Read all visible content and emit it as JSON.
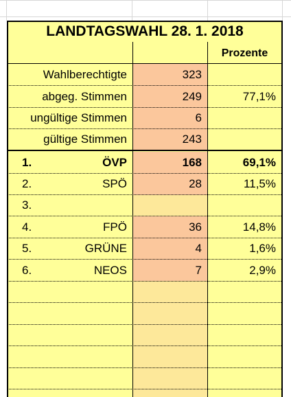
{
  "title": "LANDTAGSWAHL 28. 1. 2018",
  "header": {
    "percent_label": "Prozente"
  },
  "summary": [
    {
      "label": "Wahlberechtigte",
      "value": "323",
      "percent": ""
    },
    {
      "label": "abgeg. Stimmen",
      "value": "249",
      "percent": "77,1%"
    },
    {
      "label": "ungültige Stimmen",
      "value": "6",
      "percent": ""
    },
    {
      "label": "gültige Stimmen",
      "value": "243",
      "percent": ""
    }
  ],
  "parties": [
    {
      "rank": "1.",
      "name": "ÖVP",
      "votes": "168",
      "percent": "69,1%",
      "bold": true
    },
    {
      "rank": "2.",
      "name": "SPÖ",
      "votes": "28",
      "percent": "11,5%"
    },
    {
      "rank": "3.",
      "name": "",
      "votes": "",
      "percent": ""
    },
    {
      "rank": "4.",
      "name": "FPÖ",
      "votes": "36",
      "percent": "14,8%"
    },
    {
      "rank": "5.",
      "name": "GRÜNE",
      "votes": "4",
      "percent": "1,6%"
    },
    {
      "rank": "6.",
      "name": "NEOS",
      "votes": "7",
      "percent": "2,9%"
    }
  ],
  "colors": {
    "sheet_fill": "#ffff99",
    "votes_fill": "#fbc79c",
    "empty_votes_fill": "#fde89a"
  }
}
